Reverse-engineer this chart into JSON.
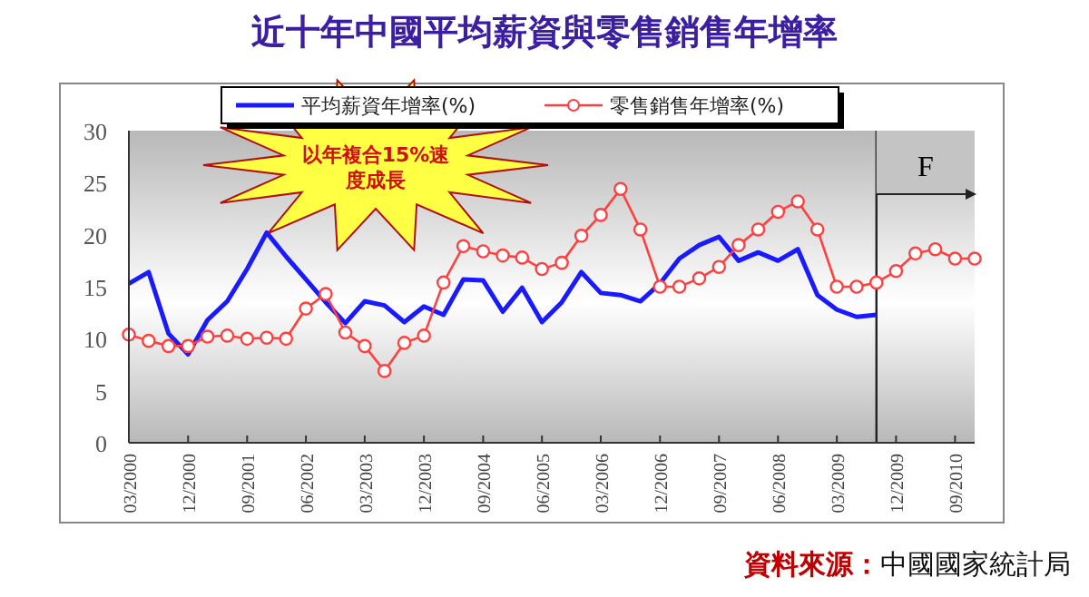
{
  "chart_data": {
    "type": "line",
    "title": "近十年中國平均薪資與零售銷售年增率",
    "x": [
      "2000-03",
      "2000-06",
      "2000-09",
      "2000-12",
      "2001-03",
      "2001-06",
      "2001-09",
      "2001-12",
      "2002-03",
      "2002-06",
      "2002-09",
      "2002-12",
      "2003-03",
      "2003-06",
      "2003-09",
      "2003-12",
      "2004-03",
      "2004-06",
      "2004-09",
      "2004-12",
      "2005-03",
      "2005-06",
      "2005-09",
      "2005-12",
      "2006-03",
      "2006-06",
      "2006-09",
      "2006-12",
      "2007-03",
      "2007-06",
      "2007-09",
      "2007-12",
      "2008-03",
      "2008-06",
      "2008-09",
      "2008-12",
      "2009-03",
      "2009-06",
      "2009-09",
      "2009-12",
      "2010-03",
      "2010-06",
      "2010-09",
      "2010-12"
    ],
    "series": [
      {
        "name": "平均薪資年增率(%)",
        "color": "#1a1aff",
        "marker": "none",
        "values": [
          15.3,
          16.4,
          10.5,
          8.5,
          11.8,
          13.6,
          16.7,
          20.2,
          17.9,
          15.7,
          13.5,
          11.5,
          13.6,
          13.2,
          11.6,
          13.1,
          12.3,
          15.7,
          15.6,
          12.6,
          14.9,
          11.6,
          13.5,
          16.4,
          14.4,
          14.2,
          13.6,
          15.3,
          17.7,
          19.0,
          19.8,
          17.5,
          18.3,
          17.5,
          18.6,
          14.2,
          12.8,
          12.1,
          12.3,
          null,
          null,
          null,
          null,
          null
        ]
      },
      {
        "name": "零售銷售年增率(%)",
        "color": "#ff4040",
        "marker": "circle",
        "values": [
          10.4,
          9.8,
          9.3,
          9.3,
          10.2,
          10.3,
          10.0,
          10.1,
          10.0,
          12.9,
          14.3,
          10.6,
          9.3,
          6.9,
          9.6,
          10.3,
          15.4,
          18.9,
          18.4,
          18.0,
          17.8,
          16.7,
          17.3,
          19.9,
          21.9,
          24.4,
          20.5,
          15.0,
          15.0,
          15.8,
          16.9,
          19.0,
          20.5,
          22.2,
          23.2,
          20.5,
          15.0,
          15.0,
          15.4,
          16.5,
          18.2,
          18.6,
          17.7,
          17.7
        ]
      }
    ],
    "xlim": [
      "2000-03",
      "2010-12"
    ],
    "xticks": [
      {
        "value": "2000-03",
        "label": "03/2000"
      },
      {
        "value": "2000-12",
        "label": "12/2000"
      },
      {
        "value": "2001-09",
        "label": "09/2001"
      },
      {
        "value": "2002-06",
        "label": "06/2002"
      },
      {
        "value": "2003-03",
        "label": "03/2003"
      },
      {
        "value": "2003-12",
        "label": "12/2003"
      },
      {
        "value": "2004-09",
        "label": "09/2004"
      },
      {
        "value": "2005-06",
        "label": "06/2005"
      },
      {
        "value": "2006-03",
        "label": "03/2006"
      },
      {
        "value": "2006-12",
        "label": "12/2006"
      },
      {
        "value": "2007-09",
        "label": "09/2007"
      },
      {
        "value": "2008-06",
        "label": "06/2008"
      },
      {
        "value": "2009-03",
        "label": "03/2009"
      },
      {
        "value": "2009-12",
        "label": "12/2009"
      },
      {
        "value": "2010-09",
        "label": "09/2010"
      }
    ],
    "ylim": [
      0,
      30
    ],
    "yticks": [
      0,
      5,
      10,
      15,
      20,
      25,
      30
    ],
    "ref_lines": [
      {
        "axis": "x",
        "value": "2009-09",
        "color": "#222222"
      }
    ],
    "bands": [
      {
        "axis": "x",
        "from": "2009-09",
        "to": "2010-12",
        "label": "F"
      }
    ],
    "annotations": [
      "以年複合15%速度成長",
      "資料來源：中國國家統計局"
    ],
    "legend": "top",
    "grid": false
  }
}
